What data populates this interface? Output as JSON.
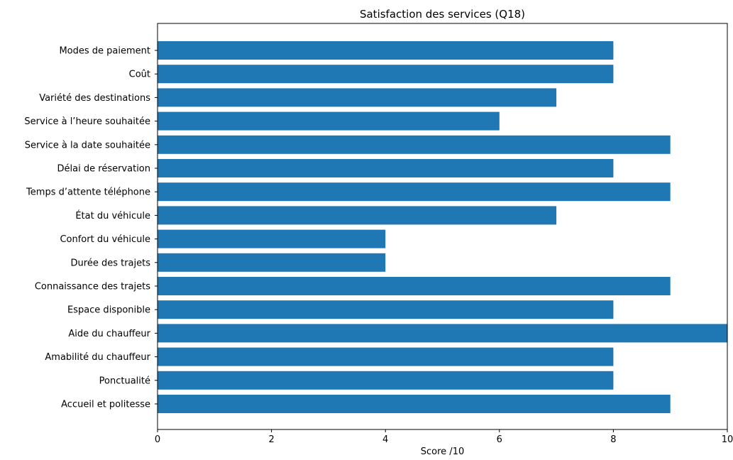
{
  "chart_data": {
    "type": "bar",
    "orientation": "horizontal",
    "title": "Satisfaction des services (Q18)",
    "xlabel": "Score /10",
    "ylabel": "",
    "xlim": [
      0,
      10
    ],
    "xticks": [
      0,
      2,
      4,
      6,
      8,
      10
    ],
    "grid": false,
    "legend": "none",
    "bar_color": "#1f77b4",
    "categories": [
      "Modes de paiement",
      "Coût",
      "Variété des destinations",
      "Service à l’heure souhaitée",
      "Service à la date souhaitée",
      "Délai de réservation",
      "Temps d’attente téléphone",
      "État du véhicule",
      "Confort du véhicule",
      "Durée des trajets",
      "Connaissance des trajets",
      "Espace disponible",
      "Aide du chauffeur",
      "Amabilité du chauffeur",
      "Ponctualité",
      "Accueil et politesse"
    ],
    "values": [
      8,
      8,
      7,
      6,
      9,
      8,
      9,
      7,
      4,
      4,
      9,
      8,
      10,
      8,
      8,
      9
    ]
  }
}
